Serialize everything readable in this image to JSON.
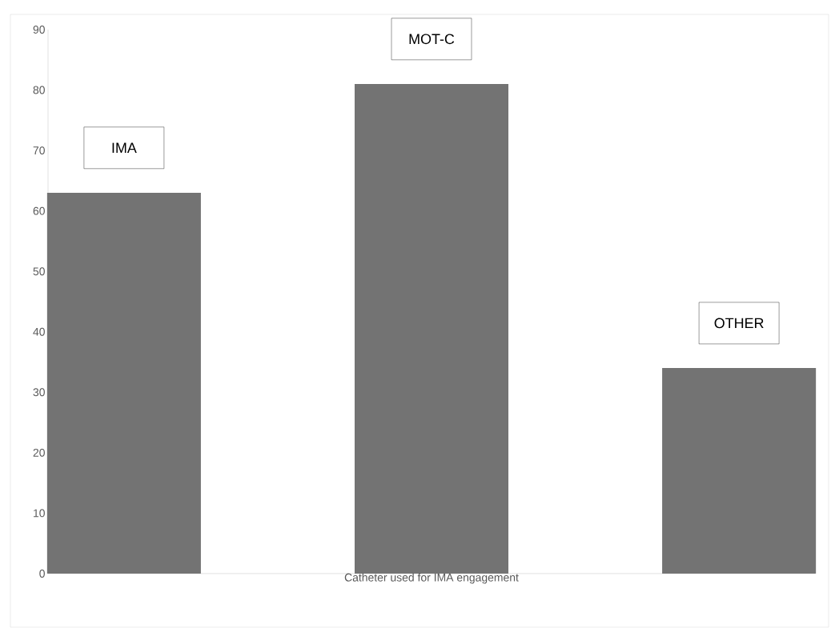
{
  "chart_data": {
    "type": "bar",
    "xlabel": "Catheter used for IMA engagement",
    "categories": [
      "IMA",
      "MOT-C",
      "OTHER"
    ],
    "values": [
      63,
      81,
      34
    ],
    "color": "#737373",
    "ylim": [
      0,
      90
    ],
    "yticks": [
      0,
      10,
      20,
      30,
      40,
      50,
      60,
      70,
      80,
      90
    ],
    "grid": false
  }
}
